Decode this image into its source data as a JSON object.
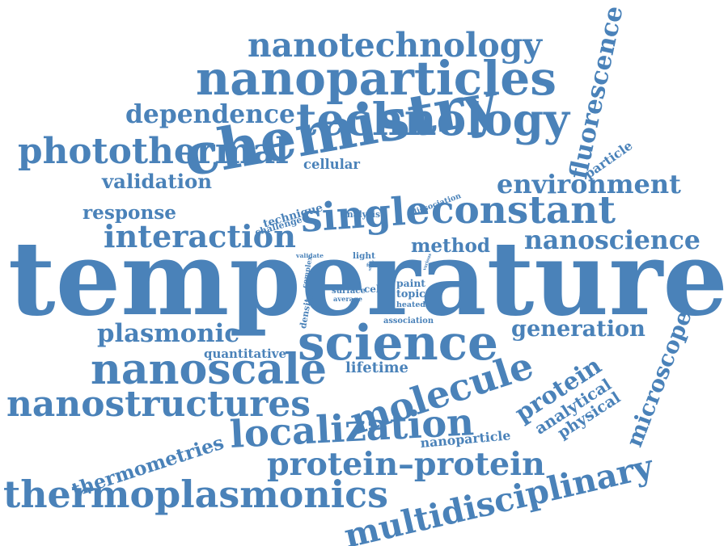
{
  "color": "#4a82b9",
  "words": [
    {
      "text": "temperature"
    },
    {
      "text": "chemistry"
    },
    {
      "text": "nanoparticles"
    },
    {
      "text": "technology"
    },
    {
      "text": "nanotechnology"
    },
    {
      "text": "photothermal"
    },
    {
      "text": "dependence"
    },
    {
      "text": "fluorescence"
    },
    {
      "text": "constant"
    },
    {
      "text": "single"
    },
    {
      "text": "interaction"
    },
    {
      "text": "environment"
    },
    {
      "text": "nanoscience"
    },
    {
      "text": "science"
    },
    {
      "text": "nanoscale"
    },
    {
      "text": "molecule"
    },
    {
      "text": "nanostructures"
    },
    {
      "text": "localization"
    },
    {
      "text": "protein–protein"
    },
    {
      "text": "thermoplasmonics"
    },
    {
      "text": "multidisciplinary"
    },
    {
      "text": "plasmonic"
    },
    {
      "text": "generation"
    },
    {
      "text": "microscope"
    },
    {
      "text": "protein"
    },
    {
      "text": "analytical"
    },
    {
      "text": "physical"
    },
    {
      "text": "thermometries"
    },
    {
      "text": "method"
    },
    {
      "text": "validation"
    },
    {
      "text": "response"
    },
    {
      "text": "particle"
    },
    {
      "text": "cellular"
    },
    {
      "text": "quantitative"
    },
    {
      "text": "lifetime"
    },
    {
      "text": "nanoparticle"
    },
    {
      "text": "technique"
    },
    {
      "text": "challenge"
    },
    {
      "text": "analysis"
    },
    {
      "text": "dissociation"
    },
    {
      "text": "validate"
    },
    {
      "text": "light"
    },
    {
      "text": "complex"
    },
    {
      "text": "density"
    },
    {
      "text": "surface"
    },
    {
      "text": "average"
    },
    {
      "text": "cell"
    },
    {
      "text": "paint"
    },
    {
      "text": "topic"
    },
    {
      "text": "heated"
    },
    {
      "text": "association"
    },
    {
      "text": "field"
    },
    {
      "text": "study"
    },
    {
      "text": "various"
    }
  ]
}
